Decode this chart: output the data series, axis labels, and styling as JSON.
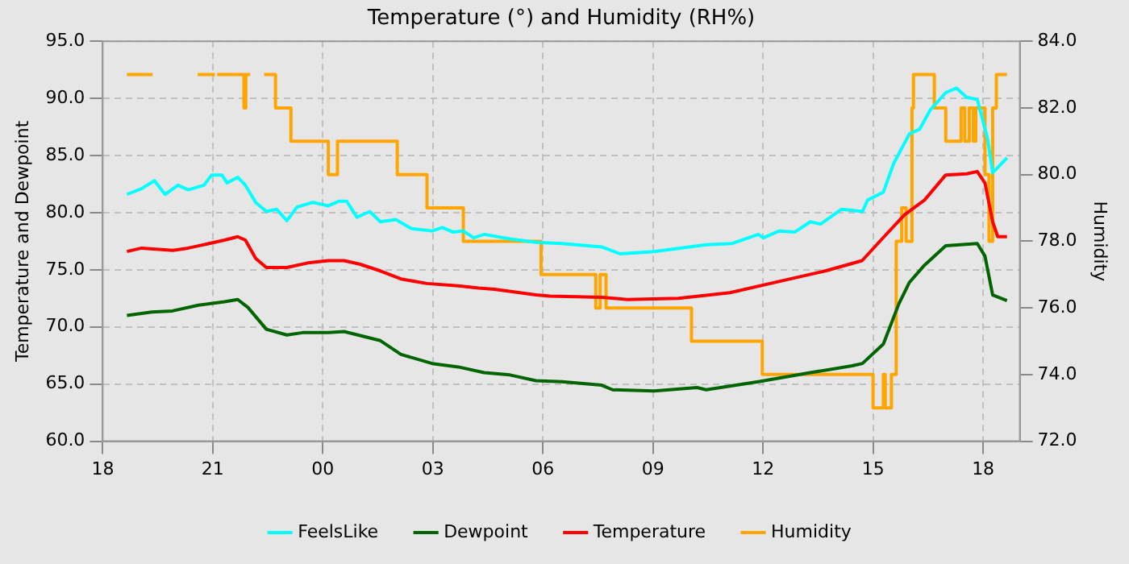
{
  "chart_data": {
    "type": "line",
    "title": "Temperature (°) and Humidity (RH%)",
    "ylabel": "Temperature and Dewpoint",
    "y2label": "Humidity",
    "xlim": [
      18,
      43
    ],
    "xticks": [
      {
        "value": 18,
        "label": "18"
      },
      {
        "value": 21,
        "label": "21"
      },
      {
        "value": 24,
        "label": "00"
      },
      {
        "value": 27,
        "label": "03"
      },
      {
        "value": 30,
        "label": "06"
      },
      {
        "value": 33,
        "label": "09"
      },
      {
        "value": 36,
        "label": "12"
      },
      {
        "value": 39,
        "label": "15"
      },
      {
        "value": 42,
        "label": "18"
      }
    ],
    "ylim": [
      60,
      95
    ],
    "yticks": [
      {
        "value": 60,
        "label": "60.0"
      },
      {
        "value": 65,
        "label": "65.0"
      },
      {
        "value": 70,
        "label": "70.0"
      },
      {
        "value": 75,
        "label": "75.0"
      },
      {
        "value": 80,
        "label": "80.0"
      },
      {
        "value": 85,
        "label": "85.0"
      },
      {
        "value": 90,
        "label": "90.0"
      },
      {
        "value": 95,
        "label": "95.0"
      }
    ],
    "y2lim": [
      72,
      84
    ],
    "y2ticks": [
      {
        "value": 72,
        "label": "72.0"
      },
      {
        "value": 74,
        "label": "74.0"
      },
      {
        "value": 76,
        "label": "76.0"
      },
      {
        "value": 78,
        "label": "78.0"
      },
      {
        "value": 80,
        "label": "80.0"
      },
      {
        "value": 82,
        "label": "82.0"
      },
      {
        "value": 84,
        "label": "84.0"
      }
    ],
    "grid": true,
    "legend": "bottom",
    "marker": "none",
    "line_style": "solid",
    "series": [
      {
        "name": "FeelsLike",
        "color": "#00ffff",
        "x": [
          18.66,
          19.06,
          19.41,
          19.7,
          20.05,
          20.33,
          20.76,
          20.97,
          21.25,
          21.39,
          21.68,
          21.89,
          22.17,
          22.46,
          22.74,
          23.02,
          23.3,
          23.73,
          24.15,
          24.44,
          24.65,
          24.93,
          25.28,
          25.57,
          25.99,
          26.42,
          26.98,
          27.26,
          27.55,
          27.83,
          28.11,
          28.4,
          29.1,
          29.81,
          30.52,
          31.6,
          32.1,
          33.03,
          34.45,
          35.16,
          35.87,
          36.01,
          36.44,
          36.86,
          37.29,
          37.57,
          38.14,
          38.71,
          38.85,
          39.28,
          39.56,
          39.99,
          40.27,
          40.56,
          40.98,
          41.27,
          41.55,
          41.84,
          42.12,
          42.26,
          42.65
        ],
        "values": [
          81.6,
          82.1,
          82.8,
          81.6,
          82.4,
          82.0,
          82.4,
          83.3,
          83.3,
          82.6,
          83.1,
          82.4,
          80.9,
          80.1,
          80.3,
          79.3,
          80.5,
          80.9,
          80.6,
          81.0,
          81.0,
          79.6,
          80.1,
          79.2,
          79.4,
          78.6,
          78.4,
          78.7,
          78.3,
          78.4,
          77.8,
          78.1,
          77.7,
          77.4,
          77.3,
          77.0,
          76.4,
          76.6,
          77.2,
          77.3,
          78.1,
          77.8,
          78.4,
          78.3,
          79.2,
          79.0,
          80.3,
          80.1,
          81.1,
          81.8,
          84.3,
          86.9,
          87.3,
          89.0,
          90.5,
          90.9,
          90.1,
          89.9,
          86.5,
          83.5,
          84.8
        ]
      },
      {
        "name": "Dewpoint",
        "color": "#006400",
        "x": [
          18.66,
          19.34,
          19.9,
          20.61,
          21.32,
          21.68,
          21.96,
          22.46,
          23.02,
          23.45,
          24.15,
          24.58,
          25.57,
          26.13,
          26.98,
          27.69,
          28.4,
          29.1,
          29.81,
          30.52,
          31.6,
          31.9,
          33.03,
          34.2,
          34.45,
          35.87,
          37.29,
          38.43,
          38.71,
          39.28,
          39.7,
          39.99,
          40.4,
          40.98,
          41.84,
          42.05,
          42.26,
          42.65
        ],
        "values": [
          71.0,
          71.3,
          71.4,
          71.9,
          72.2,
          72.4,
          71.7,
          69.8,
          69.3,
          69.5,
          69.5,
          69.6,
          68.8,
          67.6,
          66.8,
          66.5,
          66.0,
          65.8,
          65.3,
          65.2,
          64.9,
          64.5,
          64.4,
          64.7,
          64.5,
          65.2,
          66.0,
          66.6,
          66.8,
          68.5,
          72.0,
          73.9,
          75.4,
          77.1,
          77.3,
          76.2,
          72.8,
          72.3
        ]
      },
      {
        "name": "Temperature",
        "color": "#ff0000",
        "x": [
          18.66,
          19.06,
          19.91,
          20.33,
          20.9,
          21.32,
          21.68,
          21.89,
          22.17,
          22.46,
          23.02,
          23.59,
          24.15,
          24.58,
          25.0,
          25.57,
          26.13,
          26.84,
          27.69,
          28.25,
          28.68,
          29.81,
          30.19,
          31.6,
          32.3,
          33.7,
          35.1,
          36.6,
          37.7,
          38.7,
          39.3,
          39.85,
          40.4,
          40.98,
          41.55,
          41.84,
          42.05,
          42.26,
          42.4,
          42.65
        ],
        "values": [
          76.6,
          76.9,
          76.7,
          76.9,
          77.3,
          77.6,
          77.9,
          77.6,
          76.0,
          75.2,
          75.2,
          75.6,
          75.8,
          75.8,
          75.5,
          74.9,
          74.2,
          73.8,
          73.6,
          73.4,
          73.3,
          72.8,
          72.7,
          72.6,
          72.4,
          72.5,
          73.0,
          74.1,
          74.9,
          75.8,
          77.9,
          79.8,
          81.1,
          83.3,
          83.4,
          83.6,
          82.6,
          79.2,
          77.9,
          77.9
        ]
      },
      {
        "name": "Humidity",
        "type": "step",
        "axis": "y2",
        "color": "#ffa500",
        "x": [
          18.66,
          19.36,
          19.37,
          20.59,
          21.06,
          21.07,
          21.12,
          21.85,
          21.9,
          22.02,
          22.03,
          22.4,
          22.71,
          23.13,
          24.15,
          24.4,
          26.03,
          26.84,
          27.83,
          29.95,
          31.44,
          31.56,
          31.72,
          34.05,
          35.98,
          39.0,
          39.28,
          39.33,
          39.5,
          39.63,
          39.78,
          39.9,
          40.06,
          40.1,
          40.67,
          40.98,
          41.4,
          41.5,
          41.62,
          41.73,
          41.8,
          42.05,
          42.16,
          42.26,
          42.36,
          42.65
        ],
        "values": [
          83,
          83,
          null,
          83,
          83,
          null,
          83,
          82,
          83,
          83,
          null,
          83,
          82,
          81,
          80,
          81,
          80,
          79,
          78,
          77,
          76,
          77,
          76,
          75,
          74,
          73,
          74,
          73,
          74,
          78,
          79,
          78,
          82,
          83,
          82,
          81,
          82,
          81,
          82,
          81,
          82,
          80,
          78,
          82,
          83,
          83
        ]
      }
    ]
  }
}
